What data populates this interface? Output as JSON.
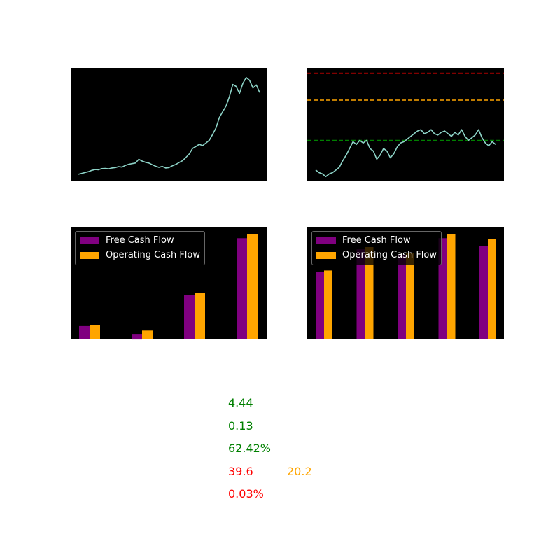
{
  "colors": {
    "background": "#000000",
    "price_line": "#8dd3c7",
    "free_cash_flow": "#800080",
    "operating_cash_flow": "#ffa500",
    "line_high": "#ff0000",
    "line_mid": "#ffa500",
    "line_low": "#008000",
    "text_green": "#008000",
    "text_red": "#ff0000",
    "text_orange": "#ffa500"
  },
  "chart_data": [
    {
      "type": "line",
      "title": "",
      "xlabel": "",
      "ylabel": "",
      "grid": false,
      "axes_visible": false,
      "x": [
        0,
        5,
        10,
        15,
        20,
        25,
        30,
        35,
        40,
        45,
        50,
        55,
        60,
        65,
        70,
        75,
        80,
        85,
        90,
        95,
        100,
        105,
        110,
        115,
        120,
        125,
        130,
        135,
        140,
        145,
        150,
        155,
        160,
        165,
        170,
        175,
        180,
        185,
        190,
        195,
        200,
        205,
        210,
        215,
        220,
        225,
        230,
        235,
        240,
        245,
        250,
        255,
        260,
        265,
        270
      ],
      "series": [
        {
          "values": [
            1.0,
            1.4,
            1.8,
            2.2,
            2.8,
            3.2,
            3.1,
            3.6,
            3.7,
            3.5,
            3.9,
            4.1,
            4.5,
            4.3,
            5.1,
            5.6,
            5.9,
            6.2,
            7.9,
            7.1,
            6.5,
            6.2,
            5.4,
            4.7,
            4.2,
            4.6,
            3.9,
            4.1,
            4.9,
            5.5,
            6.4,
            7.2,
            8.7,
            10.3,
            12.9,
            13.8,
            14.8,
            14.2,
            15.4,
            16.7,
            19.4,
            22.3,
            27.1,
            29.8,
            32.4,
            36.7,
            42.3,
            41.4,
            38.2,
            42.8,
            45.5,
            44.2,
            40.7,
            42.1,
            38.6
          ]
        }
      ],
      "ylim": [
        0,
        48
      ]
    },
    {
      "type": "line",
      "title": "",
      "xlabel": "",
      "ylabel": "",
      "grid": false,
      "axes_visible": false,
      "x": [
        0,
        5,
        10,
        15,
        20,
        25,
        30,
        35,
        40,
        45,
        50,
        55,
        60,
        65,
        70,
        75,
        80,
        85,
        90,
        95,
        100,
        105,
        110,
        115,
        120,
        125,
        130,
        135,
        140,
        145,
        150,
        155,
        160,
        165,
        170,
        175,
        180,
        185,
        190,
        195,
        200,
        205,
        210,
        215,
        220,
        225,
        230,
        235,
        240,
        245,
        250,
        255,
        260,
        265
      ],
      "series": [
        {
          "values": [
            28,
            26,
            25,
            23,
            25,
            26,
            28,
            30,
            35,
            39,
            44,
            49,
            47,
            50,
            48,
            50,
            44,
            42,
            36,
            39,
            44,
            42,
            37,
            40,
            45,
            48,
            49,
            51,
            53,
            55,
            57,
            58,
            55,
            56,
            58,
            55,
            54,
            56,
            57,
            55,
            53,
            56,
            54,
            58,
            53,
            50,
            52,
            54,
            58,
            52,
            48,
            46,
            49,
            47
          ]
        }
      ],
      "reference_lines": [
        {
          "y": 100,
          "color": "#ff0000",
          "style": "dashed"
        },
        {
          "y": 80,
          "color": "#ffa500",
          "style": "dashed"
        },
        {
          "y": 50,
          "color": "#008000",
          "style": "dashed"
        }
      ],
      "ylim": [
        20,
        104
      ]
    },
    {
      "type": "bar",
      "title": "",
      "xlabel": "",
      "ylabel": "",
      "grid": false,
      "axes_visible": false,
      "legend_position": "top-left",
      "categories": [
        "",
        "",
        "",
        ""
      ],
      "series": [
        {
          "name": "Free Cash Flow",
          "values": [
            12,
            5,
            40,
            91
          ]
        },
        {
          "name": "Operating Cash Flow",
          "values": [
            13,
            8,
            42,
            95
          ]
        }
      ],
      "ylim": [
        0,
        100
      ]
    },
    {
      "type": "bar",
      "title": "",
      "xlabel": "",
      "ylabel": "",
      "grid": false,
      "axes_visible": false,
      "legend_position": "top-left",
      "categories": [
        "",
        "",
        "",
        "",
        ""
      ],
      "series": [
        {
          "name": "Free Cash Flow",
          "values": [
            61,
            81,
            76,
            91,
            84
          ]
        },
        {
          "name": "Operating Cash Flow",
          "values": [
            62,
            83,
            78,
            95,
            90
          ]
        }
      ],
      "ylim": [
        0,
        100
      ]
    }
  ],
  "metrics": [
    {
      "value": "4.44",
      "color": "#008000"
    },
    {
      "value": "0.13",
      "color": "#008000"
    },
    {
      "value": "62.42%",
      "color": "#008000"
    },
    {
      "value": "39.6",
      "color": "#ff0000"
    },
    {
      "value": "0.03%",
      "color": "#ff0000"
    }
  ],
  "side_metric": {
    "value": "20.2",
    "color": "#ffa500"
  }
}
